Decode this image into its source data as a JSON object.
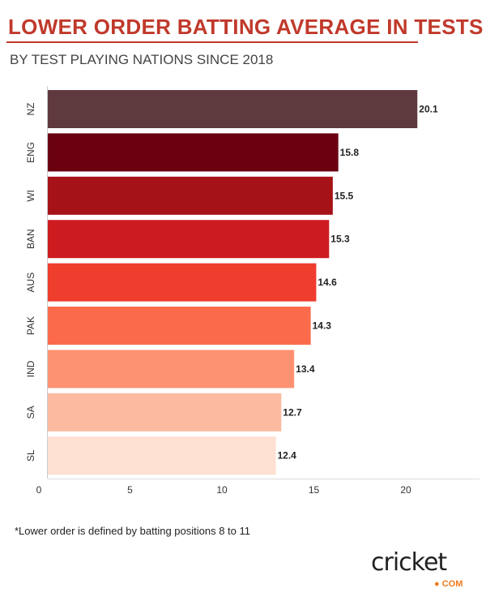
{
  "title": "LOWER ORDER BATTING AVERAGE IN TESTS",
  "subtitle": "BY TEST PLAYING NATIONS SINCE 2018",
  "footnote": "*Lower order is defined by batting positions 8 to 11",
  "logo": {
    "text": "cricket",
    "suffix": "COM"
  },
  "chart_data": {
    "type": "bar",
    "orientation": "horizontal",
    "categories": [
      "NZ",
      "ENG",
      "WI",
      "BAN",
      "AUS",
      "PAK",
      "IND",
      "SA",
      "SL"
    ],
    "values": [
      20.1,
      15.8,
      15.5,
      15.3,
      14.6,
      14.3,
      13.4,
      12.7,
      12.4
    ],
    "value_labels": [
      "20.1",
      "15.8",
      "15.5",
      "15.3",
      "14.6",
      "14.3",
      "13.4",
      "12.7",
      "12.4"
    ],
    "colors": [
      "#5e3a3e",
      "#6a0010",
      "#a51218",
      "#cc1c20",
      "#ef3d2e",
      "#fb6b4b",
      "#fc9272",
      "#fcbba1",
      "#fee0d2"
    ],
    "xticks": [
      0,
      5,
      10,
      15,
      20
    ],
    "xtick_labels": [
      "0",
      "5",
      "10",
      "15",
      "20"
    ],
    "xlim": [
      0,
      21.5
    ],
    "grid": false,
    "xlabel": "",
    "ylabel": ""
  }
}
